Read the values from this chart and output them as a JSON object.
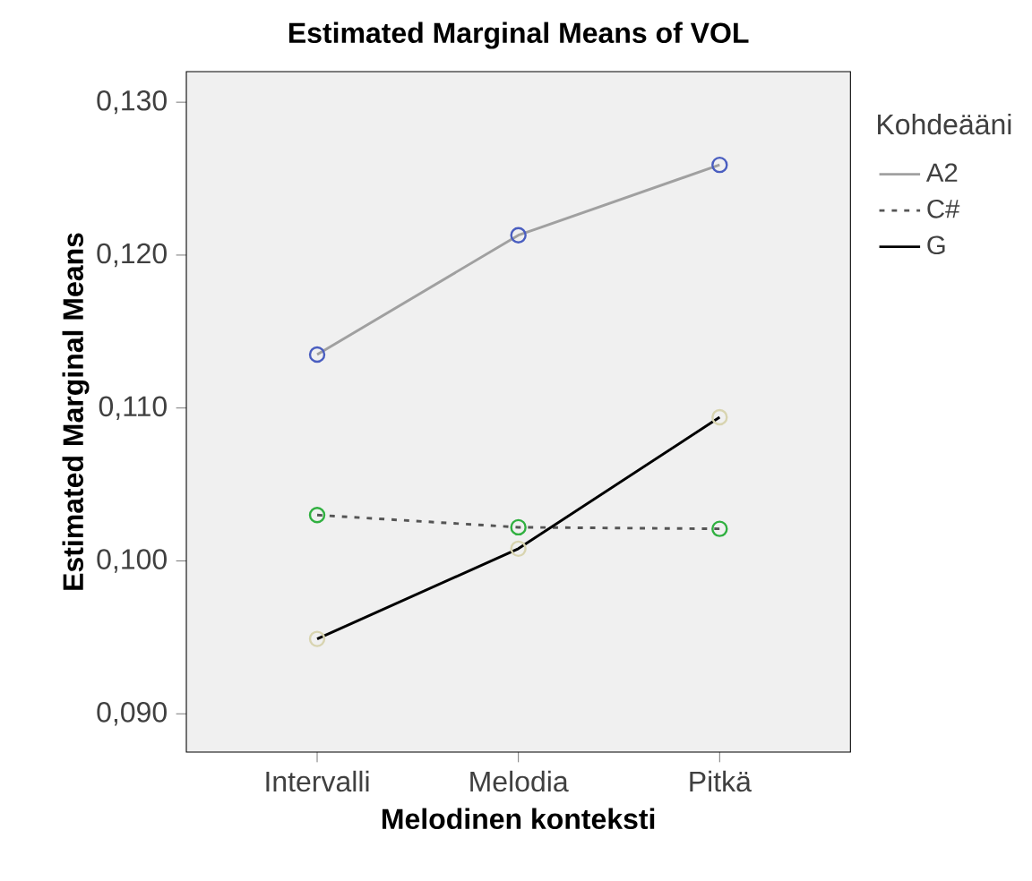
{
  "chart_data": {
    "type": "line",
    "title": "Estimated Marginal Means of VOL",
    "xlabel": "Melodinen konteksti",
    "ylabel": "Estimated Marginal Means",
    "legend_title": "Kohdeääni",
    "categories": [
      "Intervalli",
      "Melodia",
      "Pitkä"
    ],
    "series": [
      {
        "name": "A2",
        "color": "#a0a0a0",
        "line_style": "solid",
        "colors": [
          "#4a5ec0",
          "#4a5ec0",
          "#4a5ec0"
        ],
        "values": [
          0.1135,
          0.1213,
          0.1259
        ]
      },
      {
        "name": "C#",
        "color": "#555555",
        "line_style": "dotted",
        "colors": [
          "#30b040",
          "#30b040",
          "#30b040"
        ],
        "values": [
          0.103,
          0.1022,
          0.1021
        ]
      },
      {
        "name": "G",
        "color": "#000000",
        "line_style": "solid",
        "colors": [
          "#d8d4b0",
          "#d8d4b0",
          "#d8d4b0"
        ],
        "values": [
          0.0949,
          0.1008,
          0.1094
        ]
      }
    ],
    "marker": "circle",
    "ylim": [
      0.0875,
      0.132
    ],
    "yticks": [
      {
        "value": 0.09,
        "label": "0,090"
      },
      {
        "value": 0.1,
        "label": "0,100"
      },
      {
        "value": 0.11,
        "label": "0,110"
      },
      {
        "value": 0.12,
        "label": "0,120"
      },
      {
        "value": 0.13,
        "label": "0,130"
      }
    ],
    "grid": false,
    "legend": "right"
  }
}
